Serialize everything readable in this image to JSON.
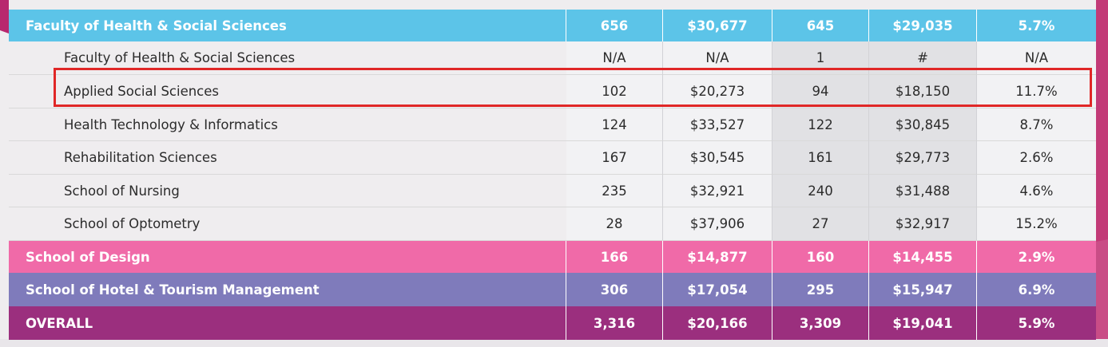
{
  "colors": {
    "faculty_header": "#5cc4e8",
    "design_header": "#f06aa8",
    "hotel_header": "#7f7bbb",
    "overall_header": "#9b2f7e",
    "highlight_box": "#e02727"
  },
  "table": {
    "faculty_header": {
      "name": "Faculty of Health & Social Sciences",
      "v1": "656",
      "v2": "$30,677",
      "v3": "645",
      "v4": "$29,035",
      "v5": "5.7%"
    },
    "rows": [
      {
        "name": "Faculty of Health & Social Sciences",
        "v1": "N/A",
        "v2": "N/A",
        "v3": "1",
        "v4": "#",
        "v5": "N/A"
      },
      {
        "name": "Applied Social Sciences",
        "v1": "102",
        "v2": "$20,273",
        "v3": "94",
        "v4": "$18,150",
        "v5": "11.7%"
      },
      {
        "name": "Health Technology & Informatics",
        "v1": "124",
        "v2": "$33,527",
        "v3": "122",
        "v4": "$30,845",
        "v5": "8.7%"
      },
      {
        "name": "Rehabilitation Sciences",
        "v1": "167",
        "v2": "$30,545",
        "v3": "161",
        "v4": "$29,773",
        "v5": "2.6%"
      },
      {
        "name": "School of Nursing",
        "v1": "235",
        "v2": "$32,921",
        "v3": "240",
        "v4": "$31,488",
        "v5": "4.6%"
      },
      {
        "name": "School of Optometry",
        "v1": "28",
        "v2": "$37,906",
        "v3": "27",
        "v4": "$32,917",
        "v5": "15.2%"
      }
    ],
    "design": {
      "name": "School of Design",
      "v1": "166",
      "v2": "$14,877",
      "v3": "160",
      "v4": "$14,455",
      "v5": "2.9%"
    },
    "hotel": {
      "name": "School of Hotel & Tourism Management",
      "v1": "306",
      "v2": "$17,054",
      "v3": "295",
      "v4": "$15,947",
      "v5": "6.9%"
    },
    "overall": {
      "name": "OVERALL",
      "v1": "3,316",
      "v2": "$20,166",
      "v3": "3,309",
      "v4": "$19,041",
      "v5": "5.9%"
    }
  }
}
